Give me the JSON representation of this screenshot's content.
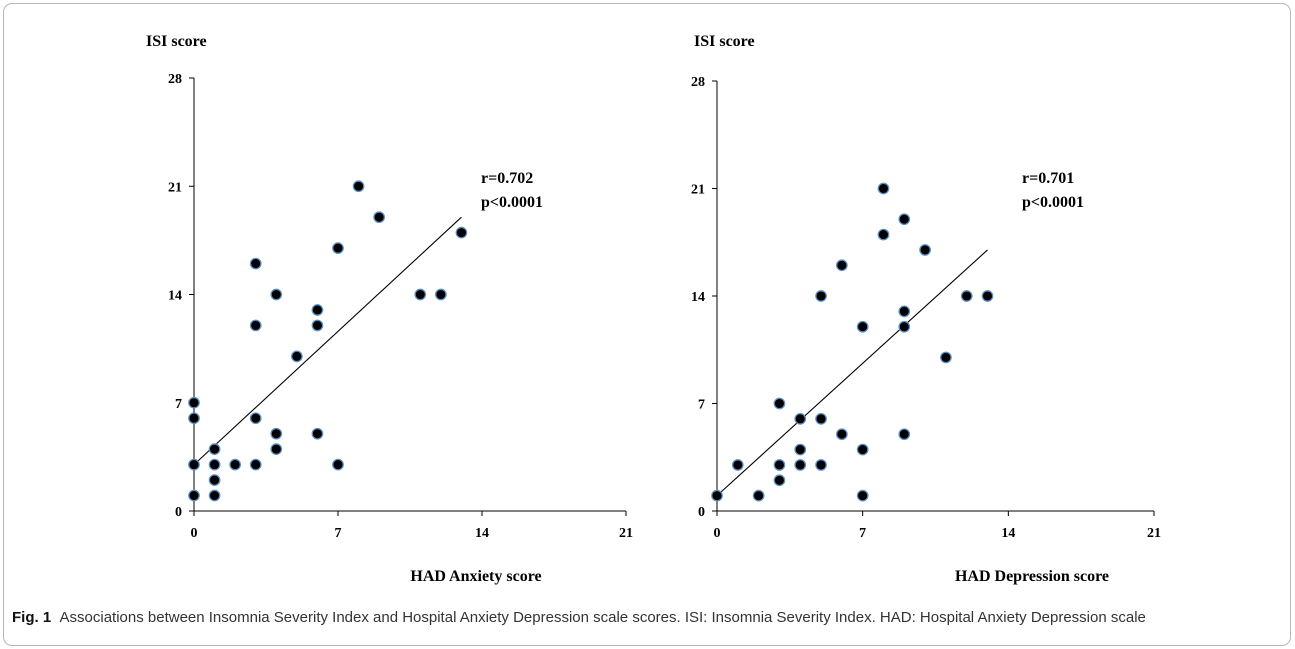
{
  "figure": {
    "label": "Fig. 1",
    "caption": "Associations between Insomnia Severity Index and Hospital Anxiety Depression scale scores. ISI: Insomnia Severity Index. HAD: Hospital Anxiety Depression scale"
  },
  "chart_data": [
    {
      "type": "scatter",
      "title": "",
      "ylabel": "ISI score",
      "xlabel": "HAD Anxiety score",
      "xlim": [
        0,
        21
      ],
      "ylim": [
        0,
        28
      ],
      "xticks": [
        0,
        7,
        14,
        21
      ],
      "yticks": [
        0,
        7,
        14,
        21,
        28
      ],
      "grid": false,
      "annotation": [
        "r=0.702",
        "p<0.0001"
      ],
      "fit_line": {
        "x": [
          0,
          13
        ],
        "y": [
          3.0,
          19.0
        ]
      },
      "points": [
        [
          0,
          1
        ],
        [
          0,
          3
        ],
        [
          0,
          6
        ],
        [
          0,
          7
        ],
        [
          1,
          1
        ],
        [
          1,
          2
        ],
        [
          1,
          3
        ],
        [
          1,
          4
        ],
        [
          2,
          3
        ],
        [
          3,
          3
        ],
        [
          3,
          6
        ],
        [
          3,
          12
        ],
        [
          3,
          16
        ],
        [
          4,
          4
        ],
        [
          4,
          5
        ],
        [
          4,
          14
        ],
        [
          5,
          10
        ],
        [
          6,
          5
        ],
        [
          6,
          12
        ],
        [
          6,
          13
        ],
        [
          7,
          3
        ],
        [
          7,
          17
        ],
        [
          8,
          21
        ],
        [
          9,
          19
        ],
        [
          11,
          14
        ],
        [
          12,
          14
        ],
        [
          13,
          18
        ]
      ]
    },
    {
      "type": "scatter",
      "title": "",
      "ylabel": "ISI score",
      "xlabel": "HAD Depression score",
      "xlim": [
        0,
        21
      ],
      "ylim": [
        0,
        28
      ],
      "xticks": [
        0,
        7,
        14,
        21
      ],
      "yticks": [
        0,
        7,
        14,
        21,
        28
      ],
      "grid": false,
      "annotation": [
        "r=0.701",
        "p<0.0001"
      ],
      "fit_line": {
        "x": [
          0,
          13
        ],
        "y": [
          1.0,
          17.0
        ]
      },
      "points": [
        [
          0,
          1
        ],
        [
          1,
          3
        ],
        [
          2,
          1
        ],
        [
          3,
          2
        ],
        [
          3,
          3
        ],
        [
          3,
          7
        ],
        [
          4,
          3
        ],
        [
          4,
          4
        ],
        [
          4,
          6
        ],
        [
          5,
          3
        ],
        [
          5,
          6
        ],
        [
          5,
          14
        ],
        [
          6,
          5
        ],
        [
          6,
          16
        ],
        [
          7,
          1
        ],
        [
          7,
          4
        ],
        [
          7,
          12
        ],
        [
          8,
          18
        ],
        [
          8,
          21
        ],
        [
          9,
          5
        ],
        [
          9,
          12
        ],
        [
          9,
          13
        ],
        [
          9,
          19
        ],
        [
          10,
          17
        ],
        [
          11,
          10
        ],
        [
          12,
          14
        ],
        [
          13,
          14
        ]
      ]
    }
  ]
}
